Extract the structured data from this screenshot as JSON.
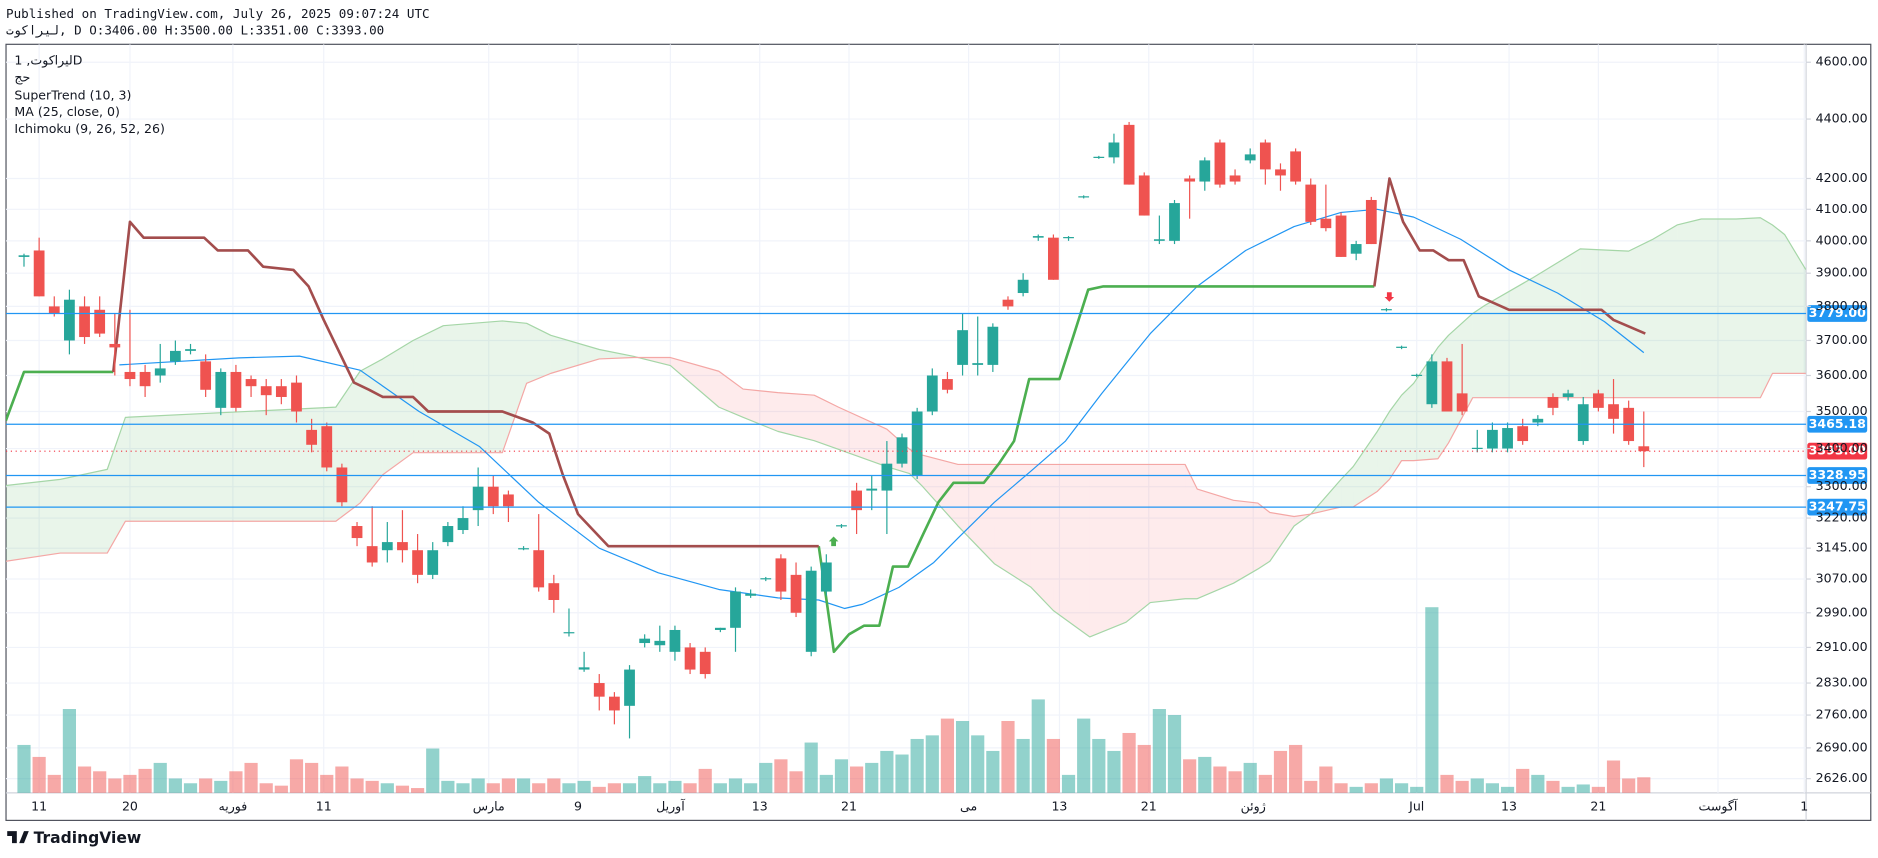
{
  "header": {
    "published": "Published on TradingView.com, July 26, 2025 09:07:24 UTC",
    "ohlc": "لیراکوت, D O:3406.00 H:3500.00 L:3351.00 C:3393.00"
  },
  "chart_data": {
    "type": "candlestick",
    "symbol": "لیراکوت, 1D",
    "volume_label": "حج",
    "y_scale": "log",
    "grid": true,
    "ylim": [
      2597,
      4665
    ],
    "yticks": [
      {
        "value": 4600,
        "label": "4600.00"
      },
      {
        "value": 4400,
        "label": "4400.00"
      },
      {
        "value": 4200,
        "label": "4200.00"
      },
      {
        "value": 4100,
        "label": "4100.00"
      },
      {
        "value": 4000,
        "label": "4000.00"
      },
      {
        "value": 3900,
        "label": "3900.00"
      },
      {
        "value": 3800,
        "label": "3800.00"
      },
      {
        "value": 3700,
        "label": "3700.00"
      },
      {
        "value": 3600,
        "label": "3600.00"
      },
      {
        "value": 3500,
        "label": "3500.00"
      },
      {
        "value": 3400,
        "label": "3400.00"
      },
      {
        "value": 3300,
        "label": "3300.00"
      },
      {
        "value": 3220,
        "label": "3220.00"
      },
      {
        "value": 3145,
        "label": "3145.00"
      },
      {
        "value": 3070,
        "label": "3070.00"
      },
      {
        "value": 2990,
        "label": "2990.00"
      },
      {
        "value": 2910,
        "label": "2910.00"
      },
      {
        "value": 2830,
        "label": "2830.00"
      },
      {
        "value": 2760,
        "label": "2760.00"
      },
      {
        "value": 2690,
        "label": "2690.00"
      },
      {
        "value": 2626,
        "label": "2626.00"
      }
    ],
    "xticks": [
      {
        "value": 1.0,
        "label": "11"
      },
      {
        "value": 7.0,
        "label": "20"
      },
      {
        "value": 13.8,
        "label": "فوریه"
      },
      {
        "value": 19.8,
        "label": "11"
      },
      {
        "value": 30.7,
        "label": "مارس"
      },
      {
        "value": 36.6,
        "label": "9"
      },
      {
        "value": 42.7,
        "label": "آوریل"
      },
      {
        "value": 48.6,
        "label": "13"
      },
      {
        "value": 54.5,
        "label": "21"
      },
      {
        "value": 62.4,
        "label": "می"
      },
      {
        "value": 68.4,
        "label": "13"
      },
      {
        "value": 74.3,
        "label": "21"
      },
      {
        "value": 81.2,
        "label": "ژوئن"
      },
      {
        "value": 92.0,
        "label": "Jul"
      },
      {
        "value": 98.1,
        "label": "13"
      },
      {
        "value": 104.0,
        "label": "21"
      },
      {
        "value": 111.9,
        "label": "آگوست"
      },
      {
        "value": 117.6,
        "label": "1"
      }
    ],
    "up_color": "#26a69a",
    "down_color": "#ef5350",
    "open": [
      3950,
      3970,
      3800,
      3700,
      3800,
      3790,
      3690,
      3610,
      3610,
      3600,
      3640,
      3670,
      3640,
      3510,
      3610,
      3590,
      3570,
      3570,
      3580,
      3450,
      3460,
      3350,
      3200,
      3150,
      3140,
      3160,
      3140,
      3080,
      3160,
      3190,
      3240,
      3300,
      3280,
      3145,
      3140,
      3060,
      2945,
      2860,
      2830,
      2800,
      2780,
      2920,
      2915,
      2900,
      2910,
      2900,
      2950,
      2955,
      3030,
      3070,
      3120,
      3080,
      2900,
      3040,
      3200,
      3290,
      3290,
      3290,
      3360,
      3330,
      3500,
      3590,
      3630,
      3630,
      3630,
      3820,
      3840,
      4010,
      4010,
      4010,
      4140,
      4270,
      4270,
      4380,
      4210,
      4000,
      4000,
      4200,
      4190,
      4320,
      4210,
      4260,
      4320,
      4230,
      4290,
      4180,
      4070,
      4080,
      3960,
      4130,
      3790,
      3680,
      3600,
      3520,
      3640,
      3550,
      3400,
      3400,
      3400,
      3460,
      3470,
      3540,
      3540,
      3420,
      3550,
      3520,
      3510,
      3406
    ],
    "high": [
      3960,
      4010,
      3830,
      3850,
      3830,
      3830,
      3780,
      3790,
      3630,
      3690,
      3700,
      3690,
      3660,
      3620,
      3630,
      3600,
      3590,
      3590,
      3600,
      3480,
      3470,
      3360,
      3210,
      3250,
      3210,
      3240,
      3180,
      3160,
      3210,
      3250,
      3350,
      3330,
      3290,
      3150,
      3230,
      3080,
      3000,
      2900,
      2850,
      2810,
      2870,
      2940,
      2960,
      2960,
      2920,
      2910,
      2955,
      3050,
      3045,
      3075,
      3130,
      3110,
      3100,
      3130,
      3205,
      3310,
      3330,
      3420,
      3440,
      3510,
      3620,
      3610,
      3780,
      3770,
      3750,
      3830,
      3900,
      4020,
      4020,
      4015,
      4145,
      4275,
      4350,
      4390,
      4220,
      4080,
      4130,
      4210,
      4270,
      4330,
      4230,
      4300,
      4330,
      4250,
      4300,
      4200,
      4180,
      4090,
      4000,
      4140,
      3795,
      3685,
      3605,
      3660,
      3650,
      3690,
      3450,
      3470,
      3470,
      3480,
      3490,
      3550,
      3560,
      3540,
      3560,
      3590,
      3530,
      3500
    ],
    "low": [
      3920,
      3830,
      3770,
      3660,
      3690,
      3710,
      3600,
      3570,
      3540,
      3580,
      3630,
      3660,
      3540,
      3490,
      3500,
      3540,
      3490,
      3520,
      3470,
      3390,
      3340,
      3250,
      3150,
      3100,
      3110,
      3110,
      3060,
      3070,
      3150,
      3180,
      3200,
      3230,
      3210,
      3140,
      3040,
      2990,
      2935,
      2855,
      2770,
      2740,
      2710,
      2910,
      2900,
      2880,
      2850,
      2840,
      2945,
      2900,
      3025,
      3065,
      3020,
      2980,
      2890,
      3030,
      3195,
      3180,
      3240,
      3180,
      3350,
      3320,
      3490,
      3550,
      3600,
      3600,
      3610,
      3790,
      3830,
      4000,
      3880,
      4000,
      4135,
      4265,
      4250,
      4180,
      4080,
      3990,
      3990,
      4070,
      4160,
      4170,
      4180,
      4250,
      4180,
      4160,
      4180,
      4050,
      4030,
      3950,
      3940,
      3990,
      3785,
      3675,
      3595,
      3510,
      3500,
      3490,
      3390,
      3390,
      3390,
      3410,
      3460,
      3490,
      3530,
      3410,
      3500,
      3440,
      3410,
      3351
    ],
    "close": [
      3955,
      3830,
      3780,
      3820,
      3710,
      3720,
      3680,
      3590,
      3570,
      3620,
      3670,
      3675,
      3560,
      3610,
      3510,
      3570,
      3545,
      3540,
      3500,
      3410,
      3350,
      3260,
      3170,
      3110,
      3160,
      3140,
      3080,
      3140,
      3200,
      3220,
      3300,
      3250,
      3250,
      3145,
      3050,
      3020,
      2945,
      2865,
      2800,
      2770,
      2860,
      2930,
      2925,
      2950,
      2860,
      2850,
      2955,
      3040,
      3035,
      3072,
      3040,
      2990,
      3090,
      3110,
      3202,
      3240,
      3295,
      3360,
      3430,
      3500,
      3600,
      3560,
      3730,
      3635,
      3740,
      3800,
      3880,
      4015,
      3880,
      4012,
      4142,
      4272,
      4320,
      4180,
      4080,
      4005,
      4120,
      4190,
      4260,
      4180,
      4190,
      4280,
      4230,
      4210,
      4190,
      4060,
      4040,
      3950,
      3990,
      3990,
      3792,
      3682,
      3602,
      3640,
      3500,
      3500,
      3402,
      3450,
      3455,
      3420,
      3480,
      3510,
      3550,
      3520,
      3510,
      3480,
      3420,
      3393
    ],
    "volume": [
      40,
      30,
      15,
      70,
      22,
      18,
      12,
      15,
      20,
      25,
      12,
      8,
      12,
      10,
      18,
      25,
      8,
      6,
      28,
      25,
      15,
      22,
      12,
      10,
      8,
      6,
      4,
      37,
      10,
      8,
      12,
      8,
      12,
      12,
      8,
      12,
      8,
      10,
      5,
      8,
      8,
      14,
      8,
      10,
      8,
      20,
      8,
      12,
      8,
      25,
      28,
      18,
      42,
      15,
      28,
      22,
      25,
      35,
      32,
      45,
      48,
      62,
      60,
      48,
      35,
      60,
      45,
      78,
      45,
      15,
      62,
      45,
      35,
      50,
      40,
      70,
      65,
      28,
      30,
      22,
      18,
      25,
      15,
      35,
      40,
      10,
      22,
      8,
      5,
      8,
      12,
      8,
      5,
      155,
      15,
      10,
      12,
      8,
      5,
      20,
      15,
      10,
      5,
      7,
      5,
      27,
      12,
      13
    ],
    "supertrend": {
      "name": "SuperTrend (10, 3)",
      "up": {
        "color": "#4caf50",
        "x": [
          -1.2,
          0,
          5.9,
          null,
          52.5,
          53.5,
          54.5,
          55.5,
          56.5,
          57.4,
          58.4,
          59.4,
          60.4,
          61.4,
          63.4,
          64.4,
          65.4,
          66.4,
          68.4,
          69.3,
          70.3,
          71.3,
          89.2
        ],
        "values": [
          3475,
          3610,
          3610,
          null,
          3150,
          2900,
          2940,
          2960,
          2960,
          3100,
          3100,
          3180,
          3260,
          3310,
          3310,
          3360,
          3420,
          3590,
          3590,
          3710,
          3850,
          3860,
          3860
        ]
      },
      "down": {
        "color": "#a34d4d",
        "x": [
          5.9,
          7,
          7.9,
          11.9,
          12.8,
          14.8,
          15.8,
          17.8,
          18.8,
          19.8,
          21.8,
          22.8,
          23.7,
          25.7,
          26.7,
          31.6,
          33.6,
          34.7,
          35.6,
          36.6,
          38.6,
          52.5,
          null,
          89.2,
          90.2,
          91.1,
          92.2,
          93.1,
          94.1,
          95.1,
          96.1,
          97.1,
          98.1,
          104.2,
          105.0,
          107.1
        ],
        "values": [
          3610,
          4060,
          4010,
          4010,
          3970,
          3970,
          3920,
          3910,
          3860,
          3760,
          3580,
          3560,
          3540,
          3540,
          3500,
          3500,
          3470,
          3440,
          3330,
          3230,
          3150,
          3150,
          null,
          3860,
          4200,
          4060,
          3970,
          3970,
          3940,
          3940,
          3830,
          3810,
          3790,
          3790,
          3760,
          3720
        ]
      }
    },
    "ma": {
      "name": "MA (25, close, 0)",
      "color": "#2196f3",
      "x": [
        6.3,
        14.2,
        18.2,
        22.2,
        26.1,
        30.1,
        34.0,
        38.0,
        41.9,
        45.9,
        49.8,
        52.5,
        54.2,
        55.4,
        57.8,
        60.1,
        61.7,
        64.1,
        66.5,
        68.8,
        71.2,
        74.4,
        77.5,
        80.7,
        83.9,
        87.0,
        89.4,
        91.8,
        94.9,
        98.1,
        101.3,
        104.4,
        107.0
      ],
      "values": [
        3630,
        3650,
        3655,
        3615,
        3500,
        3405,
        3260,
        3145,
        3085,
        3045,
        3025,
        3020,
        3000,
        3010,
        3050,
        3110,
        3170,
        3260,
        3340,
        3420,
        3550,
        3720,
        3860,
        3970,
        4045,
        4090,
        4100,
        4075,
        4005,
        3910,
        3840,
        3755,
        3665
      ]
    },
    "ichimoku": {
      "name": "Ichimoku (9, 26, 52, 26)",
      "x": [
        -1.2,
        2.4,
        5.5,
        6.7,
        20.6,
        22.2,
        23.7,
        25.7,
        27.7,
        31.6,
        33.2,
        34.8,
        38.0,
        40.3,
        42.7,
        45.9,
        47.5,
        49.8,
        52.2,
        53.8,
        57.0,
        58.5,
        59.3,
        61.7,
        64.1,
        66.5,
        68.0,
        70.4,
        72.8,
        74.4,
        76.7,
        77.5,
        79.9,
        81.5,
        82.3,
        83.9,
        85.0,
        87.0,
        87.8,
        89.4,
        90.2,
        91.0,
        91.8,
        93.4,
        94.1,
        95.7,
        96.5,
        99.7,
        102.8,
        106.0,
        107.6,
        109.2,
        110.8,
        113.1,
        114.7,
        115.5,
        116.3,
        117.7
      ],
      "span_a": {
        "color": "#a5d6a7",
        "values": [
          3303,
          3319,
          3345,
          3484,
          3512,
          3612,
          3647,
          3700,
          3743,
          3757,
          3750,
          3715,
          3674,
          3654,
          3628,
          3512,
          3484,
          3446,
          3421,
          3398,
          3352,
          3334,
          3303,
          3200,
          3107,
          3051,
          2995,
          2934,
          2968,
          3014,
          3023,
          3023,
          3060,
          3094,
          3113,
          3200,
          3230,
          3319,
          3352,
          3446,
          3500,
          3545,
          3578,
          3680,
          3715,
          3779,
          3803,
          3887,
          3975,
          3968,
          4005,
          4050,
          4069,
          4069,
          4073,
          4050,
          4020,
          3911
        ]
      },
      "span_b": {
        "color": "#f4a7a5",
        "values": [
          3113,
          3133,
          3133,
          3212,
          3212,
          3258,
          3331,
          3389,
          3389,
          3389,
          3578,
          3606,
          3647,
          3651,
          3651,
          3612,
          3562,
          3552,
          3545,
          3512,
          3452,
          3398,
          3383,
          3358,
          3358,
          3358,
          3358,
          3358,
          3358,
          3358,
          3358,
          3294,
          3265,
          3258,
          3234,
          3224,
          3230,
          3248,
          3248,
          3288,
          3319,
          3368,
          3368,
          3373,
          3415,
          3538,
          3538,
          3538,
          3538,
          3538,
          3538,
          3538,
          3538,
          3538,
          3538,
          3606,
          3606,
          3606
        ]
      },
      "bull_fill": "rgba(76,175,80,0.12)",
      "bear_fill": "rgba(242,54,69,0.1)"
    },
    "level_color": "#2196f3",
    "levels": [
      {
        "value": 3779,
        "label": "3779.00"
      },
      {
        "value": 3465.18,
        "label": "3465.18"
      },
      {
        "value": 3328.95,
        "label": "3328.95"
      },
      {
        "value": 3247.75,
        "label": "3247.75"
      }
    ],
    "last_price": {
      "value": 3393,
      "label": "3393.00",
      "color": "#f23645"
    },
    "brand": "TradingView"
  }
}
